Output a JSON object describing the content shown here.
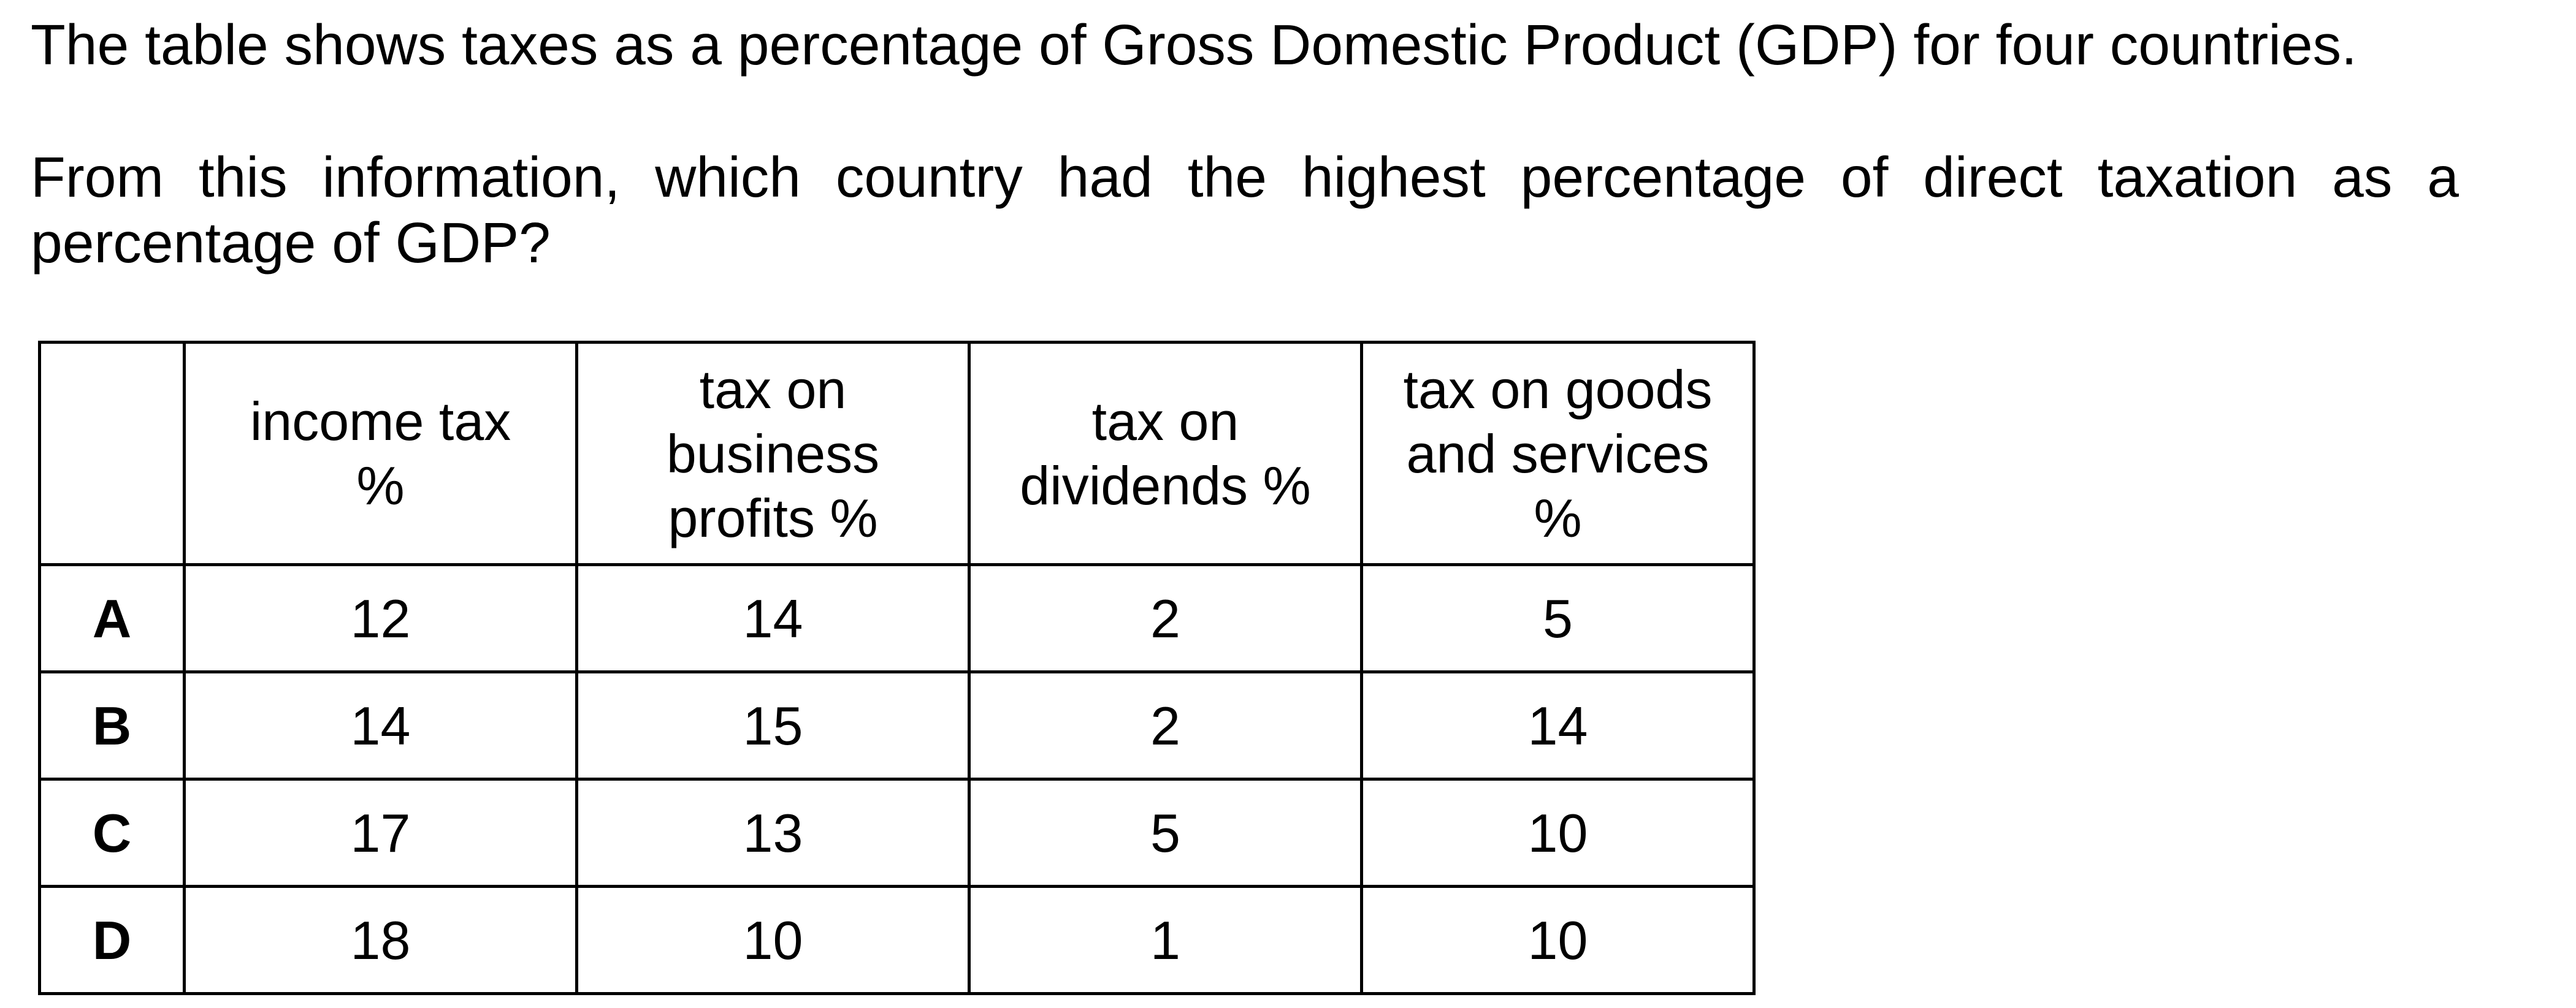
{
  "intro": "The table shows taxes as a percentage of Gross Domestic Product (GDP) for four countries.",
  "question": {
    "line1": "From this information, which country had the highest percentage of direct taxation as a",
    "line2": "percentage of GDP?"
  },
  "table": {
    "columns": [
      {
        "lines": [
          "income tax",
          "%"
        ]
      },
      {
        "lines": [
          "tax on",
          "business",
          "profits %"
        ]
      },
      {
        "lines": [
          "tax on",
          "dividends %"
        ]
      },
      {
        "lines": [
          "tax on goods",
          "and services",
          "%"
        ]
      }
    ],
    "rows": [
      {
        "label": "A",
        "values": [
          "12",
          "14",
          "2",
          "5"
        ]
      },
      {
        "label": "B",
        "values": [
          "14",
          "15",
          "2",
          "14"
        ]
      },
      {
        "label": "C",
        "values": [
          "17",
          "13",
          "5",
          "10"
        ]
      },
      {
        "label": "D",
        "values": [
          "18",
          "10",
          "1",
          "10"
        ]
      }
    ]
  }
}
